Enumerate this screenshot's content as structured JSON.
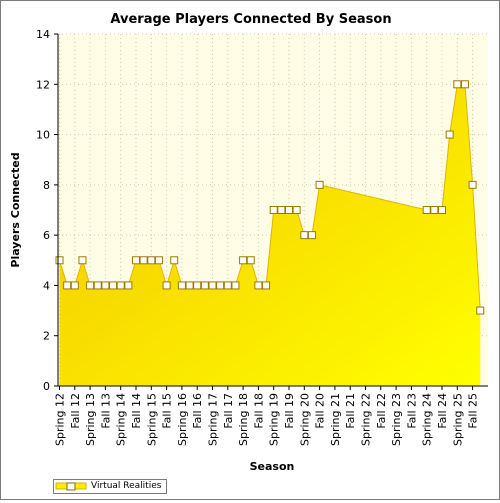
{
  "chart_data": {
    "type": "area",
    "title": "Average Players Connected By Season",
    "xlabel": "Season",
    "ylabel": "Players Connected",
    "ylim": [
      0,
      14
    ],
    "yticks": [
      0,
      2,
      4,
      6,
      8,
      10,
      12,
      14
    ],
    "grid": true,
    "legend": "bottom-left",
    "categories": [
      "Spring 12",
      "Fall 12",
      "Spring 13",
      "Fall 13",
      "Spring 14",
      "Fall 14",
      "Spring 15",
      "Fall 15",
      "Spring 16",
      "Fall 16",
      "Spring 17",
      "Fall 17",
      "Spring 18",
      "Fall 18",
      "Spring 19",
      "Fall 19",
      "Spring 20",
      "Fall 20",
      "Spring 21",
      "Fall 21",
      "Spring 22",
      "Fall 22",
      "Spring 23",
      "Fall 23",
      "Spring 24",
      "Fall 24",
      "Spring 25",
      "Fall 25"
    ],
    "series": [
      {
        "name": "Virtual Realities",
        "color": "#ffee00",
        "points": [
          {
            "x": 0.0,
            "y": 5
          },
          {
            "x": 0.5,
            "y": 4
          },
          {
            "x": 1.0,
            "y": 4
          },
          {
            "x": 1.5,
            "y": 5
          },
          {
            "x": 2.0,
            "y": 4
          },
          {
            "x": 2.5,
            "y": 4
          },
          {
            "x": 3.0,
            "y": 4
          },
          {
            "x": 3.5,
            "y": 4
          },
          {
            "x": 4.0,
            "y": 4
          },
          {
            "x": 4.5,
            "y": 4
          },
          {
            "x": 5.0,
            "y": 5
          },
          {
            "x": 5.5,
            "y": 5
          },
          {
            "x": 6.0,
            "y": 5
          },
          {
            "x": 6.5,
            "y": 5
          },
          {
            "x": 7.0,
            "y": 4
          },
          {
            "x": 7.5,
            "y": 5
          },
          {
            "x": 8.0,
            "y": 4
          },
          {
            "x": 8.5,
            "y": 4
          },
          {
            "x": 9.0,
            "y": 4
          },
          {
            "x": 9.5,
            "y": 4
          },
          {
            "x": 10.0,
            "y": 4
          },
          {
            "x": 10.5,
            "y": 4
          },
          {
            "x": 11.0,
            "y": 4
          },
          {
            "x": 11.5,
            "y": 4
          },
          {
            "x": 12.0,
            "y": 5
          },
          {
            "x": 12.5,
            "y": 5
          },
          {
            "x": 13.0,
            "y": 4
          },
          {
            "x": 13.5,
            "y": 4
          },
          {
            "x": 14.0,
            "y": 7
          },
          {
            "x": 14.5,
            "y": 7
          },
          {
            "x": 15.0,
            "y": 7
          },
          {
            "x": 15.5,
            "y": 7
          },
          {
            "x": 16.0,
            "y": 6
          },
          {
            "x": 16.5,
            "y": 6
          },
          {
            "x": 17.0,
            "y": 8
          },
          {
            "x": 24.0,
            "y": 7
          },
          {
            "x": 24.5,
            "y": 7
          },
          {
            "x": 25.0,
            "y": 7
          },
          {
            "x": 25.5,
            "y": 10
          },
          {
            "x": 26.0,
            "y": 12
          },
          {
            "x": 26.5,
            "y": 12
          },
          {
            "x": 27.0,
            "y": 8
          },
          {
            "x": 27.5,
            "y": 3
          }
        ]
      }
    ]
  }
}
